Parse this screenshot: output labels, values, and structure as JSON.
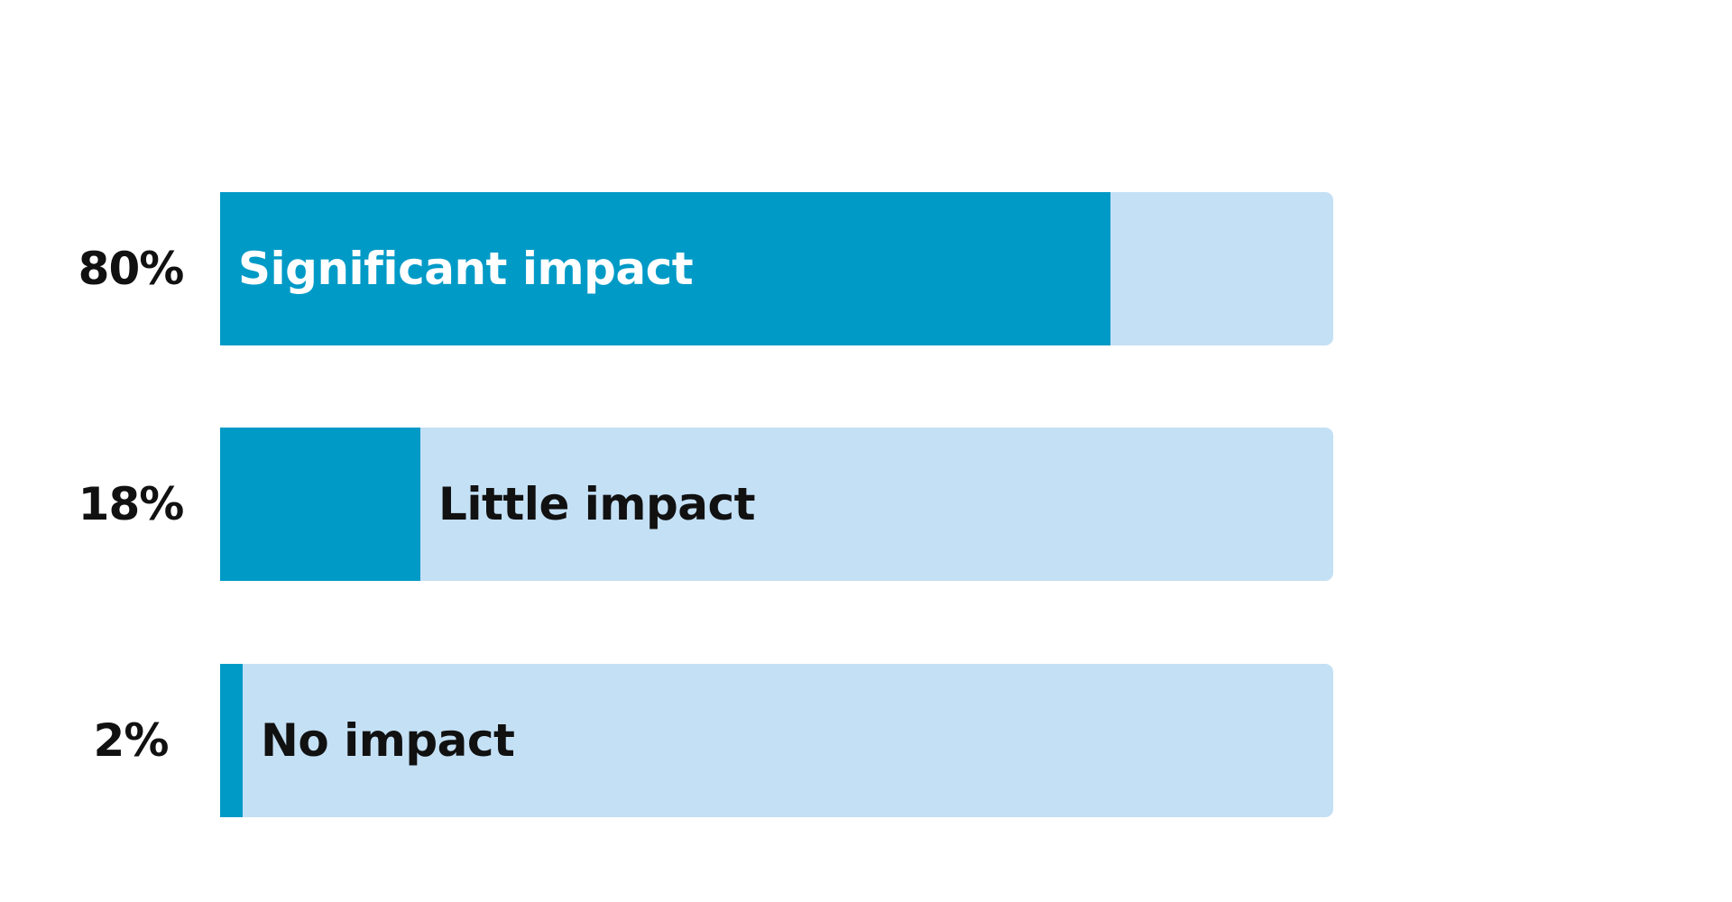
{
  "colors": {
    "fill": "#009ac7",
    "track": "#c4e0f5",
    "label_on_fill": "#ffffff",
    "label_on_track": "#111111"
  },
  "chart_data": {
    "type": "bar",
    "orientation": "horizontal",
    "categories": [
      "Significant impact",
      "Little impact",
      "No impact"
    ],
    "values": [
      80,
      18,
      2
    ],
    "value_labels": [
      "80%",
      "18%",
      "2%"
    ],
    "xlim": [
      0,
      100
    ],
    "grid": false
  }
}
